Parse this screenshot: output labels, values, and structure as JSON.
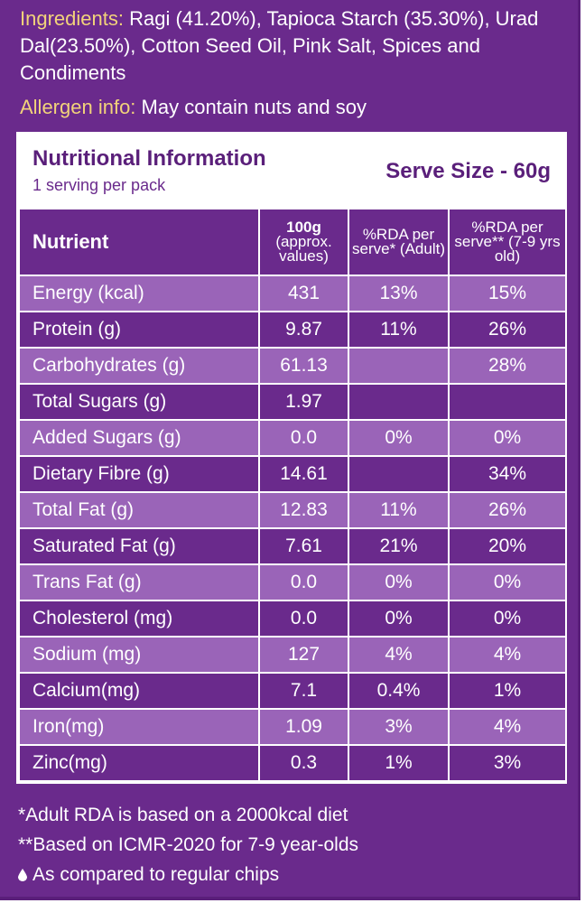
{
  "ingredients": {
    "label": "Ingredients:",
    "text": " Ragi (41.20%), Tapioca Starch (35.30%), Urad Dal(23.50%), Cotton Seed Oil, Pink Salt, Spices and Condiments"
  },
  "allergen": {
    "label": "Allergen info:",
    "text": " May contain nuts and soy"
  },
  "nutrition": {
    "title": "Nutritional Information",
    "subtitle": "1 serving per pack",
    "serve_size": "Serve Size - 60g",
    "headers": {
      "nutrient": "Nutrient",
      "col1_bold": "100g",
      "col1_rest": "(approx. values)",
      "col2": "%RDA per serve* (Adult)",
      "col3": "%RDA per serve** (7-9 yrs old)"
    },
    "rows": [
      {
        "name": "Energy (kcal)",
        "v100": "431",
        "adult": "13%",
        "child": "15%"
      },
      {
        "name": "Protein (g)",
        "v100": "9.87",
        "adult": "11%",
        "child": "26%"
      },
      {
        "name": "Carbohydrates (g)",
        "v100": "61.13",
        "adult": "",
        "child": "28%"
      },
      {
        "name": "Total Sugars (g)",
        "v100": "1.97",
        "adult": "",
        "child": ""
      },
      {
        "name": "Added Sugars (g)",
        "v100": "0.0",
        "adult": "0%",
        "child": "0%"
      },
      {
        "name": "Dietary Fibre (g)",
        "v100": "14.61",
        "adult": "",
        "child": "34%"
      },
      {
        "name": "Total Fat (g)",
        "v100": "12.83",
        "adult": "11%",
        "child": "26%"
      },
      {
        "name": "Saturated Fat (g)",
        "v100": "7.61",
        "adult": "21%",
        "child": "20%"
      },
      {
        "name": "Trans Fat (g)",
        "v100": "0.0",
        "adult": "0%",
        "child": "0%"
      },
      {
        "name": "Cholesterol (mg)",
        "v100": "0.0",
        "adult": "0%",
        "child": "0%"
      },
      {
        "name": "Sodium (mg)",
        "v100": "127",
        "adult": "4%",
        "child": "4%"
      },
      {
        "name": "Calcium(mg)",
        "v100": "7.1",
        "adult": "0.4%",
        "child": "1%"
      },
      {
        "name": "Iron(mg)",
        "v100": "1.09",
        "adult": "3%",
        "child": "4%"
      },
      {
        "name": "Zinc(mg)",
        "v100": "0.3",
        "adult": "1%",
        "child": "3%"
      }
    ]
  },
  "footer": {
    "note1": "*Adult RDA is based on a 2000kcal diet",
    "note2": "**Based on ICMR-2020 for 7-9 year-olds",
    "note3": "As compared to regular chips",
    "note3_icon": "drop-icon"
  },
  "colors": {
    "background": "#6a2a8c",
    "row_light": "#9a64b8",
    "label_yellow": "#f2d37a"
  }
}
